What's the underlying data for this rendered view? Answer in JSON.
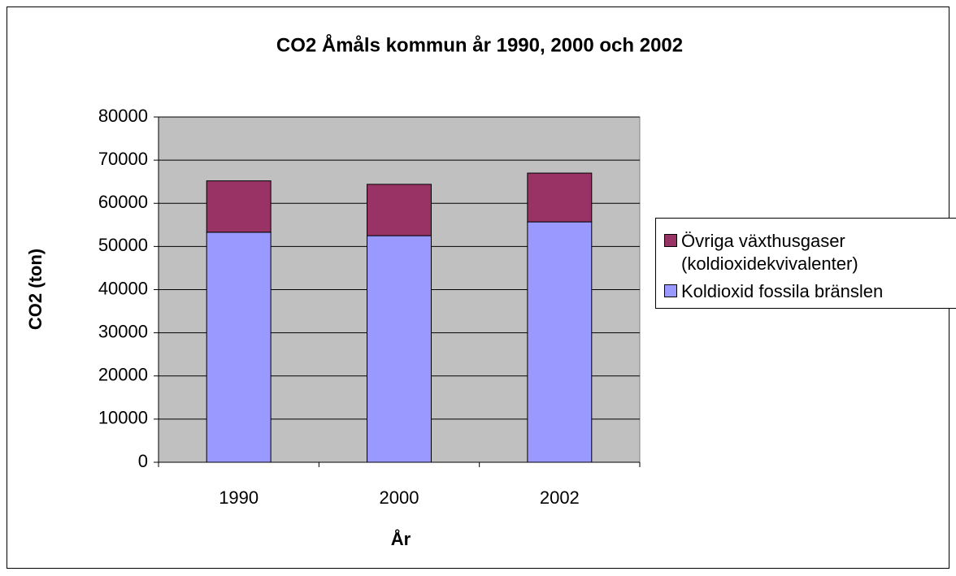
{
  "chart_data": {
    "type": "stacked_bar",
    "title": "CO2 Åmåls kommun år 1990, 2000 och 2002",
    "x_label": "År",
    "y_label": "CO2 (ton)",
    "categories": [
      "1990",
      "2000",
      "2002"
    ],
    "series": [
      {
        "name": "Koldioxid fossila bränslen",
        "color": "#9999ff",
        "values": [
          53300,
          52500,
          55700
        ]
      },
      {
        "name": "Övriga växthusgaser (koldioxidekvivalenter)",
        "color": "#993366",
        "values": [
          11900,
          11900,
          11300
        ]
      }
    ],
    "ylim": [
      0,
      80000
    ],
    "yticks": [
      0,
      10000,
      20000,
      30000,
      40000,
      50000,
      60000,
      70000,
      80000
    ],
    "grid": true,
    "legend": "right"
  }
}
